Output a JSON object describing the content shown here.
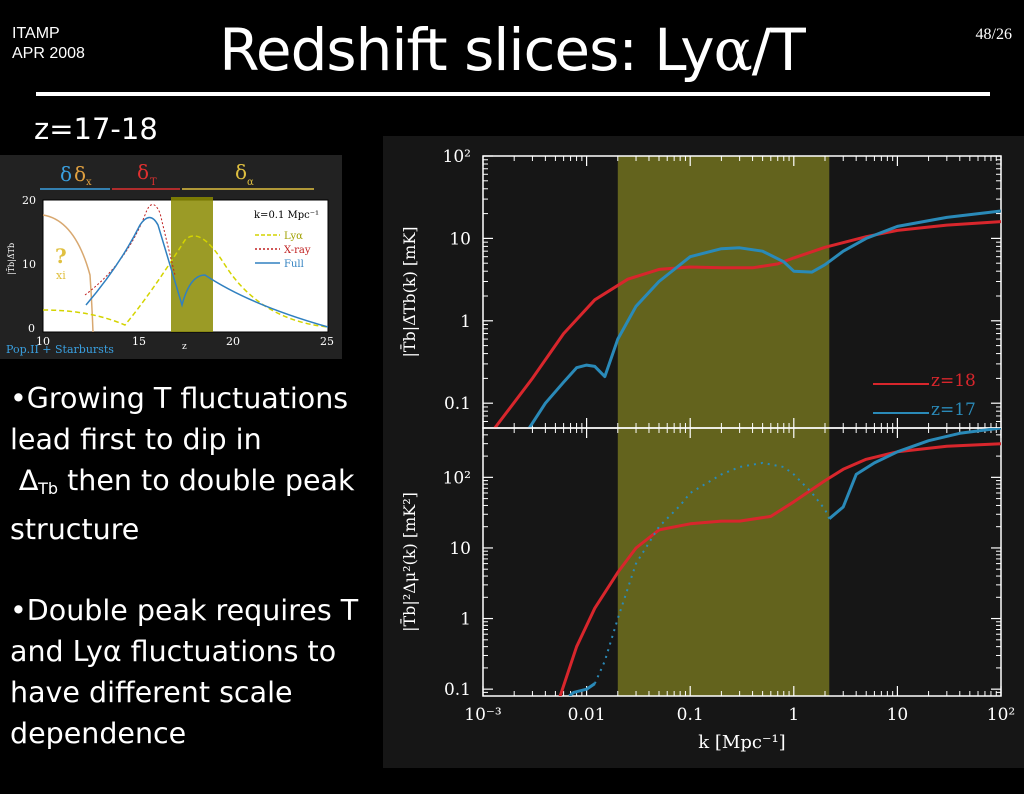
{
  "header": {
    "conference": "ITAMP",
    "date": "APR 2008",
    "page": "48/26",
    "title_prefix": "Redshift slices: Ly",
    "title_alpha": "α",
    "title_suffix": "/T"
  },
  "redshift_range": "z=17-18",
  "bullets": {
    "b1_line1": "•Growing T fluctuations lead first to dip in",
    "b1_delta": "∆",
    "b1_sub": "Tb",
    "b1_line2": " then to double peak structure",
    "b2_part1": "•Double peak requires T and Ly",
    "b2_alpha": "α",
    "b2_part2": " fluctuations to have different scale dependence"
  },
  "inset": {
    "top_labels": [
      "δ",
      "δ",
      "x",
      "δ",
      "T",
      "δ",
      "α"
    ],
    "kval": "k=0.1 Mpc⁻¹",
    "legend": [
      "Lyα",
      "X-ray",
      "Full"
    ],
    "yticks": [
      "20",
      "10",
      "0"
    ],
    "xticks": [
      "10",
      "15",
      "20",
      "25"
    ],
    "xlabel": "z",
    "ylabel": "|T̄b|Δ̄Tb",
    "q_mark": "?",
    "xi_label": "xi",
    "footer": "Pop.II + Starbursts"
  },
  "chart_data": {
    "type": "line",
    "xscale": "log",
    "xlim": [
      0.001,
      100
    ],
    "xlabel": "k [Mpc⁻¹]",
    "xticks": [
      "10⁻³",
      "0.01",
      "0.1",
      "1",
      "10",
      "10²"
    ],
    "highlight_band_k": [
      0.02,
      2.2
    ],
    "colors": {
      "z18": "#d8262c",
      "z17": "#2a8ab8",
      "band": "#6b6b1e"
    },
    "panels": [
      {
        "ylabel": "|T̄b|Δ̄Tb(k) [mK]",
        "yscale": "log",
        "ylim": [
          0.05,
          100
        ],
        "yticks": [
          "0.1",
          "1",
          "10",
          "10²"
        ],
        "legend": [
          "z=18",
          "z=17"
        ],
        "series": [
          {
            "name": "z=18",
            "x": [
              0.0013,
              0.003,
              0.006,
              0.012,
              0.025,
              0.05,
              0.1,
              0.2,
              0.4,
              0.7,
              1,
              2,
              5,
              10,
              30,
              100
            ],
            "y": [
              0.05,
              0.2,
              0.7,
              1.8,
              3.2,
              4.2,
              4.5,
              4.4,
              4.4,
              4.9,
              5.8,
              7.8,
              10.5,
              12.5,
              14.5,
              16
            ]
          },
          {
            "name": "z=17",
            "x": [
              0.0028,
              0.004,
              0.006,
              0.008,
              0.01,
              0.012,
              0.015,
              0.02,
              0.03,
              0.05,
              0.1,
              0.2,
              0.3,
              0.5,
              0.8,
              1,
              1.5,
              2,
              3,
              5,
              10,
              30,
              100
            ],
            "y": [
              0.05,
              0.1,
              0.18,
              0.27,
              0.29,
              0.28,
              0.21,
              0.6,
              1.5,
              3,
              6,
              7.5,
              7.7,
              7,
              5.2,
              4,
              3.9,
              4.8,
              7,
              10,
              14,
              18,
              21.5
            ]
          }
        ]
      },
      {
        "ylabel": "|T̄b|²Δμ²(k) [mK²]",
        "yscale": "log",
        "ylim": [
          0.08,
          500
        ],
        "yticks": [
          "0.1",
          "1",
          "10",
          "10²"
        ],
        "series": [
          {
            "name": "z=18",
            "x": [
              0.005,
              0.008,
              0.012,
              0.02,
              0.03,
              0.05,
              0.1,
              0.2,
              0.3,
              0.6,
              1,
              2,
              3,
              5,
              10,
              30,
              100
            ],
            "y": [
              0.05,
              0.4,
              1.4,
              4.5,
              10,
              18,
              22,
              24,
              24,
              28,
              45,
              90,
              130,
              180,
              230,
              275,
              300
            ]
          },
          {
            "name": "z=17",
            "x": [
              0.0068,
              0.0075,
              0.01,
              0.012,
              0.015,
              0.02,
              0.03,
              0.05,
              0.08,
              0.1,
              0.2,
              0.3,
              0.5,
              0.8,
              1,
              1.5,
              2,
              2.2,
              3,
              4,
              6,
              10,
              20,
              40,
              100
            ],
            "y": [
              0.08,
              0.09,
              0.1,
              0.12,
              0.25,
              1,
              6,
              20,
              40,
              60,
              110,
              140,
              160,
              140,
              110,
              60,
              35,
              26,
              38,
              110,
              160,
              230,
              330,
              420,
              500
            ]
          }
        ]
      }
    ]
  }
}
